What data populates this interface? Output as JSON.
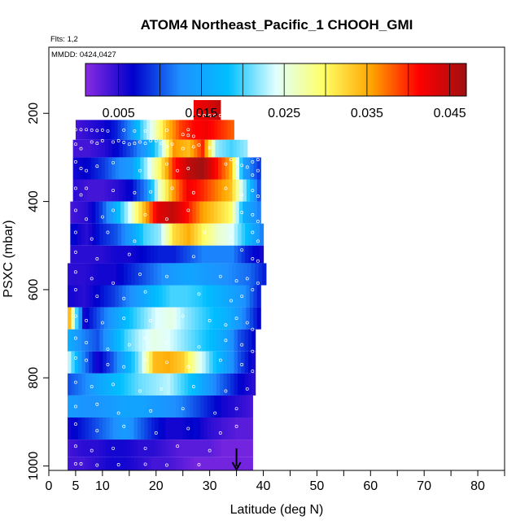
{
  "chart_data": {
    "type": "heatmap",
    "title": "ATOM4 Northeast_Pacific_1 CHOOH_GMI",
    "flights_note": "Flts: 1,2",
    "date_note": "MMDD: 0424,0427",
    "xlabel": "Latitude (deg N)",
    "ylabel": "PSXC (mbar)",
    "xlim": [
      0,
      85
    ],
    "ylim": [
      1010,
      50
    ],
    "y_reversed": true,
    "x_ticks": [
      0,
      5,
      10,
      20,
      30,
      40,
      50,
      60,
      70,
      80
    ],
    "x_tick_labels": [
      "0",
      "5",
      "10",
      "20",
      "30",
      "40",
      "50",
      "60",
      "70",
      "80"
    ],
    "x_minor_ticks": [
      15,
      25,
      35,
      45,
      55,
      65,
      75,
      85
    ],
    "y_ticks": [
      200,
      400,
      600,
      800,
      1000
    ],
    "y_tick_labels": [
      "200",
      "400",
      "600",
      "800",
      "1000"
    ],
    "colorbar": {
      "range": [
        0.001,
        0.047
      ],
      "tick_values": [
        0.005,
        0.015,
        0.025,
        0.035,
        0.045
      ],
      "tick_labels": [
        "0.005",
        "0.015",
        "0.025",
        "0.035",
        "0.045"
      ],
      "colors": [
        "#8a2be2",
        "#0000cd",
        "#1e90ff",
        "#00bfff",
        "#e0ffff",
        "#ffff66",
        "#ffa500",
        "#ff0000",
        "#a01010"
      ]
    },
    "marker": {
      "lat": 35,
      "p": 1000,
      "symbol": "down-arrow"
    },
    "rows": [
      {
        "p_top": 170,
        "p_bot": 215,
        "lat_start": 27,
        "lat_end": 32,
        "values": [
          0.042,
          0.043,
          0.045
        ]
      },
      {
        "p_top": 215,
        "p_bot": 260,
        "lat_start": 5,
        "lat_end": 34.5,
        "values": [
          0.004,
          0.005,
          0.006,
          0.008,
          0.012,
          0.02,
          0.026,
          0.034,
          0.039,
          0.041,
          0.042,
          0.04,
          0.038
        ]
      },
      {
        "p_top": 260,
        "p_bot": 300,
        "lat_start": 4.5,
        "lat_end": 37,
        "values": [
          0.004,
          0.004,
          0.005,
          0.007,
          0.01,
          0.014,
          0.022,
          0.036,
          0.034,
          0.04,
          0.022,
          0.02,
          0.022
        ]
      },
      {
        "p_top": 300,
        "p_bot": 350,
        "lat_start": 4.5,
        "lat_end": 39.5,
        "values": [
          0.006,
          0.007,
          0.009,
          0.012,
          0.014,
          0.022,
          0.03,
          0.04,
          0.045,
          0.047,
          0.041,
          0.035,
          0.014,
          0.009
        ]
      },
      {
        "p_top": 350,
        "p_bot": 400,
        "lat_start": 4.5,
        "lat_end": 39.5,
        "values": [
          0.005,
          0.004,
          0.004,
          0.005,
          0.007,
          0.012,
          0.026,
          0.036,
          0.042,
          0.04,
          0.037,
          0.034,
          0.022,
          0.01
        ]
      },
      {
        "p_top": 400,
        "p_bot": 450,
        "lat_start": 4,
        "lat_end": 39.5,
        "values": [
          0.004,
          0.005,
          0.009,
          0.016,
          0.024,
          0.034,
          0.043,
          0.045,
          0.041,
          0.036,
          0.033,
          0.03,
          0.016,
          0.012
        ]
      },
      {
        "p_top": 450,
        "p_bot": 500,
        "lat_start": 4,
        "lat_end": 40,
        "values": [
          0.007,
          0.005,
          0.008,
          0.01,
          0.014,
          0.02,
          0.022,
          0.032,
          0.035,
          0.03,
          0.026,
          0.024,
          0.018,
          0.012
        ]
      },
      {
        "p_top": 500,
        "p_bot": 540,
        "lat_start": 4,
        "lat_end": 40,
        "values": [
          0.005,
          0.005,
          0.005,
          0.006,
          0.006,
          0.007,
          0.008,
          0.008,
          0.01,
          0.012,
          0.012,
          0.012,
          0.008,
          0.006
        ]
      },
      {
        "p_top": 540,
        "p_bot": 590,
        "lat_start": 3.5,
        "lat_end": 40.5,
        "values": [
          0.005,
          0.005,
          0.006,
          0.006,
          0.008,
          0.01,
          0.012,
          0.014,
          0.015,
          0.014,
          0.013,
          0.012,
          0.011,
          0.008
        ]
      },
      {
        "p_top": 590,
        "p_bot": 640,
        "lat_start": 3.5,
        "lat_end": 39.5,
        "values": [
          0.006,
          0.005,
          0.007,
          0.009,
          0.012,
          0.015,
          0.018,
          0.02,
          0.02,
          0.019,
          0.017,
          0.015,
          0.013,
          0.008
        ]
      },
      {
        "p_top": 640,
        "p_bot": 690,
        "lat_start": 3.5,
        "lat_end": 39.5,
        "values": [
          0.034,
          0.006,
          0.01,
          0.014,
          0.018,
          0.021,
          0.024,
          0.025,
          0.022,
          0.02,
          0.018,
          0.016,
          0.012,
          0.007
        ]
      },
      {
        "p_top": 690,
        "p_bot": 740,
        "lat_start": 3.5,
        "lat_end": 38.5,
        "values": [
          0.016,
          0.012,
          0.01,
          0.015,
          0.02,
          0.023,
          0.025,
          0.024,
          0.022,
          0.02,
          0.018,
          0.015,
          0.01,
          0.007
        ]
      },
      {
        "p_top": 740,
        "p_bot": 790,
        "lat_start": 3.5,
        "lat_end": 38.5,
        "values": [
          0.023,
          0.012,
          0.006,
          0.01,
          0.016,
          0.022,
          0.034,
          0.035,
          0.033,
          0.026,
          0.02,
          0.015,
          0.01,
          0.006
        ]
      },
      {
        "p_top": 790,
        "p_bot": 840,
        "lat_start": 3.5,
        "lat_end": 38.5,
        "values": [
          0.01,
          0.012,
          0.015,
          0.017,
          0.019,
          0.021,
          0.022,
          0.023,
          0.02,
          0.017,
          0.013,
          0.01,
          0.007,
          0.005
        ]
      },
      {
        "p_top": 840,
        "p_bot": 890,
        "lat_start": 3.5,
        "lat_end": 38,
        "values": [
          0.014,
          0.013,
          0.013,
          0.014,
          0.015,
          0.015,
          0.014,
          0.013,
          0.012,
          0.01,
          0.008,
          0.006,
          0.005,
          0.004
        ]
      },
      {
        "p_top": 890,
        "p_bot": 940,
        "lat_start": 3.5,
        "lat_end": 38,
        "values": [
          0.006,
          0.008,
          0.01,
          0.012,
          0.014,
          0.011,
          0.008,
          0.006,
          0.006,
          0.007,
          0.005,
          0.004,
          0.003,
          0.003
        ]
      },
      {
        "p_top": 940,
        "p_bot": 980,
        "lat_start": 3.5,
        "lat_end": 38,
        "values": [
          0.004,
          0.005,
          0.005,
          0.006,
          0.006,
          0.005,
          0.005,
          0.004,
          0.003,
          0.003,
          0.003,
          0.002,
          0.002,
          0.002
        ]
      },
      {
        "p_top": 980,
        "p_bot": 1010,
        "lat_start": 3.5,
        "lat_end": 38,
        "values": [
          0.004,
          0.004,
          0.005,
          0.006,
          0.006,
          0.005,
          0.004,
          0.004,
          0.003,
          0.002,
          0.002,
          0.002,
          0.002,
          0.002
        ]
      }
    ],
    "obs_points": [
      [
        5,
        237
      ],
      [
        6,
        237
      ],
      [
        7,
        237
      ],
      [
        8,
        238
      ],
      [
        9,
        239
      ],
      [
        10,
        238
      ],
      [
        11,
        240
      ],
      [
        14,
        238
      ],
      [
        16,
        240
      ],
      [
        18,
        240
      ],
      [
        22,
        238
      ],
      [
        26,
        237
      ],
      [
        28,
        205
      ],
      [
        29,
        205
      ],
      [
        30,
        205
      ],
      [
        31,
        205
      ],
      [
        32,
        205
      ],
      [
        25,
        248
      ],
      [
        26,
        250
      ],
      [
        27,
        252
      ],
      [
        5,
        270
      ],
      [
        6,
        280
      ],
      [
        8,
        265
      ],
      [
        9,
        268
      ],
      [
        10,
        262
      ],
      [
        12,
        265
      ],
      [
        13,
        262
      ],
      [
        14,
        266
      ],
      [
        15,
        270
      ],
      [
        16,
        268
      ],
      [
        17,
        265
      ],
      [
        18,
        268
      ],
      [
        19,
        262
      ],
      [
        20,
        262
      ],
      [
        21,
        268
      ],
      [
        22,
        275
      ],
      [
        23,
        270
      ],
      [
        25,
        280
      ],
      [
        27,
        276
      ],
      [
        28,
        272
      ],
      [
        30,
        278
      ],
      [
        5,
        310
      ],
      [
        6,
        325
      ],
      [
        7,
        330
      ],
      [
        9,
        320
      ],
      [
        12,
        312
      ],
      [
        17,
        330
      ],
      [
        22,
        315
      ],
      [
        24,
        330
      ],
      [
        26,
        325
      ],
      [
        33,
        315
      ],
      [
        34,
        305
      ],
      [
        35,
        312
      ],
      [
        36,
        318
      ],
      [
        37,
        322
      ],
      [
        38,
        310
      ],
      [
        39,
        305
      ],
      [
        39,
        330
      ],
      [
        38,
        340
      ],
      [
        5,
        370
      ],
      [
        6,
        385
      ],
      [
        7,
        370
      ],
      [
        12,
        375
      ],
      [
        16,
        380
      ],
      [
        19,
        378
      ],
      [
        23,
        370
      ],
      [
        27,
        380
      ],
      [
        33,
        370
      ],
      [
        36,
        385
      ],
      [
        38,
        375
      ],
      [
        39,
        388
      ],
      [
        5,
        420
      ],
      [
        7,
        440
      ],
      [
        10,
        435
      ],
      [
        12,
        420
      ],
      [
        18,
        430
      ],
      [
        22,
        440
      ],
      [
        26,
        420
      ],
      [
        36,
        425
      ],
      [
        38,
        430
      ],
      [
        39,
        445
      ],
      [
        5,
        470
      ],
      [
        8,
        485
      ],
      [
        11,
        470
      ],
      [
        16,
        490
      ],
      [
        29,
        470
      ],
      [
        34,
        480
      ],
      [
        38,
        470
      ],
      [
        39,
        490
      ],
      [
        5,
        515
      ],
      [
        9,
        530
      ],
      [
        15,
        520
      ],
      [
        27,
        525
      ],
      [
        36,
        510
      ],
      [
        38,
        530
      ],
      [
        39,
        535
      ],
      [
        5,
        560
      ],
      [
        8,
        575
      ],
      [
        12,
        585
      ],
      [
        17,
        565
      ],
      [
        22,
        570
      ],
      [
        32,
        570
      ],
      [
        35,
        580
      ],
      [
        37,
        575
      ],
      [
        39,
        585
      ],
      [
        5,
        600
      ],
      [
        9,
        615
      ],
      [
        14,
        620
      ],
      [
        18,
        605
      ],
      [
        28,
        610
      ],
      [
        34,
        625
      ],
      [
        36,
        615
      ],
      [
        38,
        600
      ],
      [
        5,
        660
      ],
      [
        7,
        670
      ],
      [
        10,
        675
      ],
      [
        14,
        665
      ],
      [
        19,
        670
      ],
      [
        25,
        660
      ],
      [
        30,
        670
      ],
      [
        33,
        680
      ],
      [
        35,
        665
      ],
      [
        37,
        675
      ],
      [
        38,
        690
      ],
      [
        5,
        710
      ],
      [
        7,
        720
      ],
      [
        11,
        735
      ],
      [
        15,
        725
      ],
      [
        18,
        710
      ],
      [
        22,
        720
      ],
      [
        28,
        730
      ],
      [
        33,
        715
      ],
      [
        36,
        725
      ],
      [
        38,
        740
      ],
      [
        5,
        755
      ],
      [
        7,
        760
      ],
      [
        11,
        770
      ],
      [
        14,
        775
      ],
      [
        18,
        760
      ],
      [
        22,
        765
      ],
      [
        26,
        775
      ],
      [
        32,
        760
      ],
      [
        36,
        770
      ],
      [
        38,
        785
      ],
      [
        5,
        810
      ],
      [
        8,
        820
      ],
      [
        12,
        815
      ],
      [
        17,
        830
      ],
      [
        21,
        825
      ],
      [
        27,
        820
      ],
      [
        33,
        830
      ],
      [
        37,
        825
      ],
      [
        5,
        865
      ],
      [
        9,
        860
      ],
      [
        13,
        880
      ],
      [
        19,
        875
      ],
      [
        25,
        870
      ],
      [
        31,
        880
      ],
      [
        35,
        870
      ],
      [
        5,
        905
      ],
      [
        9,
        920
      ],
      [
        14,
        910
      ],
      [
        20,
        925
      ],
      [
        26,
        915
      ],
      [
        32,
        925
      ],
      [
        35,
        910
      ],
      [
        5,
        955
      ],
      [
        8,
        965
      ],
      [
        12,
        960
      ],
      [
        18,
        960
      ],
      [
        24,
        955
      ],
      [
        30,
        965
      ],
      [
        5,
        995
      ],
      [
        6,
        995
      ],
      [
        9,
        998
      ],
      [
        13,
        997
      ],
      [
        18,
        996
      ],
      [
        22,
        998
      ],
      [
        28,
        997
      ]
    ]
  }
}
